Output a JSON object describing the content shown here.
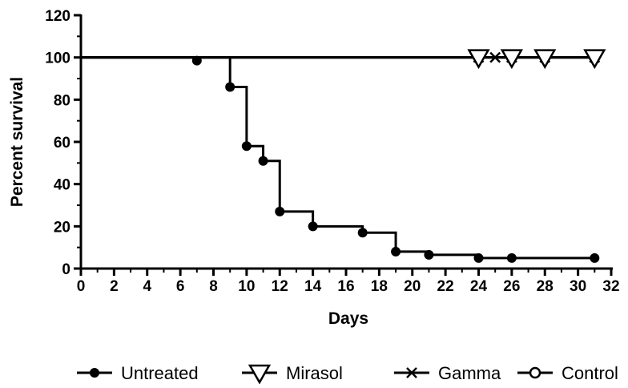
{
  "chart_data": {
    "type": "line",
    "step": true,
    "title": "",
    "xlabel": "Days",
    "ylabel": "Percent survival",
    "xlim": [
      0,
      32
    ],
    "ylim": [
      0,
      120
    ],
    "x_ticks": [
      0,
      2,
      4,
      6,
      8,
      10,
      12,
      14,
      16,
      18,
      20,
      22,
      24,
      26,
      28,
      30,
      32
    ],
    "y_ticks": [
      0,
      20,
      40,
      60,
      80,
      100,
      120
    ],
    "grid": false,
    "legend_position": "bottom",
    "series": [
      {
        "name": "Untreated",
        "marker": "filled-circle",
        "step_x": [
          0,
          9,
          10,
          11,
          12,
          14,
          17,
          19,
          21,
          24,
          31
        ],
        "step_y": [
          100,
          86,
          58,
          51,
          27,
          20,
          17,
          8,
          6.5,
          5,
          5
        ],
        "marker_points": [
          {
            "x": 7,
            "y": 98.5
          },
          {
            "x": 9,
            "y": 86
          },
          {
            "x": 10,
            "y": 58
          },
          {
            "x": 11,
            "y": 51
          },
          {
            "x": 12,
            "y": 27
          },
          {
            "x": 14,
            "y": 20
          },
          {
            "x": 17,
            "y": 17
          },
          {
            "x": 19,
            "y": 8
          },
          {
            "x": 21,
            "y": 6.5
          },
          {
            "x": 24,
            "y": 5
          },
          {
            "x": 26,
            "y": 5
          },
          {
            "x": 31,
            "y": 5
          }
        ]
      },
      {
        "name": "Mirasol",
        "marker": "open-triangle-down",
        "step_x": [
          0,
          31
        ],
        "step_y": [
          100,
          100
        ],
        "marker_points": [
          {
            "x": 24,
            "y": 100
          },
          {
            "x": 26,
            "y": 100
          },
          {
            "x": 28,
            "y": 100
          },
          {
            "x": 31,
            "y": 100
          }
        ]
      },
      {
        "name": "Gamma",
        "marker": "x",
        "step_x": [
          0,
          31
        ],
        "step_y": [
          100,
          100
        ],
        "marker_points": [
          {
            "x": 24,
            "y": 100
          },
          {
            "x": 25,
            "y": 100
          },
          {
            "x": 26,
            "y": 100
          },
          {
            "x": 28,
            "y": 100
          },
          {
            "x": 31,
            "y": 100
          }
        ]
      },
      {
        "name": "Control",
        "marker": "open-circle",
        "step_x": [
          0,
          31
        ],
        "step_y": [
          100,
          100
        ],
        "marker_points": []
      }
    ]
  }
}
